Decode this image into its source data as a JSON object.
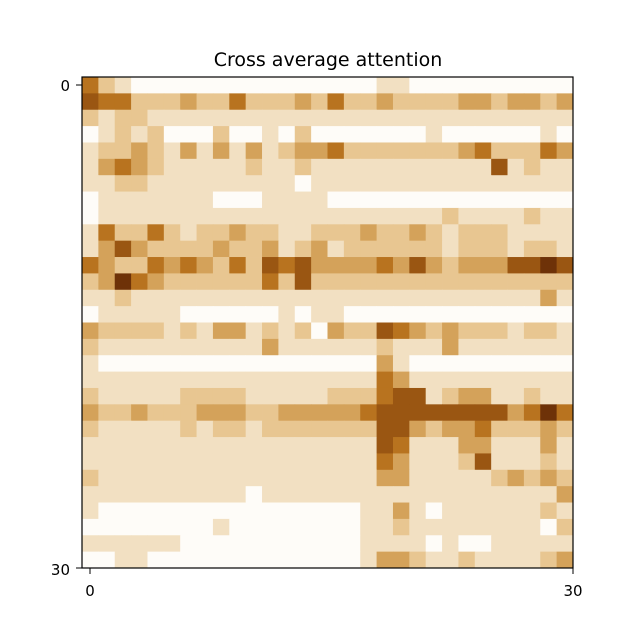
{
  "chart_data": {
    "type": "heatmap",
    "title": "Cross average attention",
    "x_ticks": [
      "0",
      "30"
    ],
    "y_ticks": [
      "0",
      "30"
    ],
    "xlim": [
      0,
      30
    ],
    "ylim": [
      0,
      30
    ],
    "colormap": [
      "#fefcf8",
      "#f2e0c2",
      "#e8c691",
      "#d4a25a",
      "#b8731f",
      "#9a5612",
      "#6e3208"
    ],
    "rows": 30,
    "cols": 30,
    "values": [
      [
        4,
        2,
        1,
        0,
        0,
        0,
        0,
        0,
        0,
        0,
        0,
        0,
        0,
        0,
        0,
        0,
        0,
        0,
        1,
        1,
        0,
        0,
        0,
        0,
        0,
        0,
        0,
        0,
        0,
        0
      ],
      [
        5,
        4,
        4,
        2,
        2,
        2,
        3,
        2,
        2,
        4,
        2,
        2,
        2,
        3,
        2,
        4,
        2,
        2,
        3,
        2,
        2,
        2,
        2,
        3,
        3,
        2,
        3,
        3,
        2,
        3
      ],
      [
        2,
        1,
        2,
        2,
        1,
        1,
        1,
        1,
        1,
        1,
        1,
        1,
        1,
        1,
        1,
        1,
        1,
        1,
        1,
        1,
        1,
        1,
        1,
        1,
        1,
        1,
        1,
        1,
        1,
        1
      ],
      [
        0,
        1,
        2,
        1,
        2,
        0,
        0,
        0,
        2,
        0,
        0,
        1,
        0,
        2,
        0,
        0,
        0,
        0,
        0,
        0,
        0,
        1,
        0,
        0,
        0,
        0,
        0,
        0,
        1,
        0
      ],
      [
        1,
        2,
        2,
        3,
        2,
        1,
        3,
        1,
        3,
        1,
        3,
        1,
        2,
        3,
        3,
        4,
        2,
        2,
        2,
        2,
        2,
        2,
        2,
        3,
        4,
        2,
        2,
        2,
        4,
        3
      ],
      [
        1,
        3,
        4,
        3,
        2,
        1,
        1,
        1,
        1,
        1,
        2,
        1,
        1,
        2,
        1,
        1,
        1,
        1,
        1,
        1,
        1,
        1,
        1,
        1,
        1,
        5,
        1,
        2,
        1,
        1
      ],
      [
        1,
        1,
        2,
        2,
        1,
        1,
        1,
        1,
        1,
        1,
        1,
        1,
        1,
        0,
        1,
        1,
        1,
        1,
        1,
        1,
        1,
        1,
        1,
        1,
        1,
        1,
        1,
        1,
        1,
        1
      ],
      [
        0,
        1,
        1,
        1,
        1,
        1,
        1,
        1,
        0,
        0,
        0,
        1,
        1,
        1,
        1,
        0,
        0,
        0,
        0,
        0,
        0,
        0,
        0,
        0,
        0,
        0,
        0,
        0,
        0,
        0
      ],
      [
        0,
        1,
        1,
        1,
        1,
        1,
        1,
        1,
        1,
        1,
        1,
        1,
        1,
        1,
        1,
        1,
        1,
        1,
        1,
        1,
        1,
        1,
        2,
        1,
        1,
        1,
        1,
        2,
        1,
        1
      ],
      [
        1,
        4,
        2,
        2,
        4,
        2,
        1,
        2,
        2,
        3,
        2,
        2,
        1,
        1,
        2,
        2,
        2,
        3,
        2,
        2,
        3,
        2,
        1,
        2,
        2,
        2,
        1,
        1,
        1,
        1
      ],
      [
        1,
        3,
        5,
        3,
        2,
        2,
        2,
        2,
        3,
        2,
        2,
        3,
        1,
        2,
        3,
        1,
        2,
        2,
        2,
        2,
        2,
        2,
        1,
        2,
        2,
        2,
        1,
        2,
        2,
        1
      ],
      [
        4,
        3,
        2,
        2,
        4,
        3,
        4,
        3,
        2,
        4,
        2,
        5,
        4,
        5,
        3,
        3,
        3,
        3,
        4,
        3,
        5,
        3,
        2,
        3,
        3,
        3,
        5,
        5,
        6,
        5
      ],
      [
        2,
        3,
        6,
        4,
        3,
        2,
        2,
        2,
        2,
        2,
        2,
        4,
        2,
        5,
        2,
        2,
        2,
        2,
        2,
        2,
        2,
        2,
        2,
        2,
        2,
        2,
        2,
        2,
        2,
        2
      ],
      [
        1,
        1,
        2,
        1,
        1,
        1,
        1,
        1,
        1,
        1,
        1,
        1,
        1,
        1,
        1,
        1,
        1,
        1,
        1,
        1,
        1,
        1,
        1,
        1,
        1,
        1,
        1,
        1,
        3,
        1
      ],
      [
        0,
        1,
        1,
        1,
        1,
        1,
        0,
        0,
        0,
        0,
        0,
        0,
        1,
        0,
        1,
        1,
        0,
        0,
        0,
        0,
        0,
        0,
        0,
        0,
        0,
        0,
        0,
        0,
        0,
        0
      ],
      [
        3,
        2,
        2,
        2,
        2,
        1,
        2,
        1,
        3,
        3,
        1,
        2,
        1,
        2,
        0,
        3,
        2,
        2,
        5,
        4,
        3,
        2,
        3,
        2,
        2,
        2,
        1,
        2,
        2,
        1
      ],
      [
        2,
        1,
        1,
        1,
        1,
        1,
        1,
        1,
        1,
        1,
        1,
        3,
        1,
        1,
        1,
        1,
        1,
        1,
        2,
        1,
        1,
        1,
        3,
        1,
        1,
        1,
        1,
        1,
        1,
        1
      ],
      [
        1,
        0,
        0,
        0,
        0,
        0,
        0,
        0,
        0,
        0,
        0,
        0,
        0,
        0,
        0,
        0,
        0,
        0,
        3,
        1,
        0,
        0,
        0,
        0,
        0,
        0,
        0,
        0,
        0,
        0
      ],
      [
        1,
        1,
        1,
        1,
        1,
        1,
        1,
        1,
        1,
        1,
        1,
        1,
        1,
        1,
        1,
        1,
        1,
        1,
        4,
        3,
        1,
        1,
        1,
        1,
        1,
        1,
        1,
        1,
        1,
        1
      ],
      [
        2,
        1,
        1,
        1,
        1,
        1,
        2,
        2,
        2,
        2,
        1,
        1,
        1,
        1,
        1,
        2,
        2,
        2,
        4,
        5,
        5,
        1,
        2,
        3,
        3,
        1,
        1,
        2,
        1,
        1
      ],
      [
        3,
        2,
        2,
        3,
        2,
        2,
        2,
        3,
        3,
        3,
        2,
        2,
        3,
        3,
        3,
        3,
        3,
        4,
        5,
        5,
        5,
        5,
        5,
        5,
        5,
        5,
        3,
        4,
        6,
        4
      ],
      [
        2,
        1,
        1,
        1,
        1,
        1,
        2,
        1,
        2,
        2,
        1,
        2,
        2,
        2,
        2,
        2,
        2,
        2,
        5,
        5,
        3,
        2,
        3,
        3,
        4,
        2,
        2,
        2,
        3,
        2
      ],
      [
        1,
        1,
        1,
        1,
        1,
        1,
        1,
        1,
        1,
        1,
        1,
        1,
        1,
        1,
        1,
        1,
        1,
        1,
        5,
        4,
        1,
        1,
        1,
        3,
        3,
        1,
        1,
        1,
        3,
        1
      ],
      [
        1,
        1,
        1,
        1,
        1,
        1,
        1,
        1,
        1,
        1,
        1,
        1,
        1,
        1,
        1,
        1,
        1,
        1,
        4,
        3,
        1,
        1,
        1,
        2,
        5,
        1,
        1,
        1,
        2,
        1
      ],
      [
        2,
        1,
        1,
        1,
        1,
        1,
        1,
        1,
        1,
        1,
        1,
        1,
        1,
        1,
        1,
        1,
        1,
        1,
        3,
        3,
        1,
        1,
        1,
        1,
        1,
        2,
        3,
        2,
        3,
        2
      ],
      [
        1,
        1,
        1,
        1,
        1,
        1,
        1,
        1,
        1,
        1,
        0,
        1,
        1,
        1,
        1,
        1,
        1,
        1,
        1,
        1,
        1,
        1,
        1,
        1,
        1,
        1,
        1,
        1,
        1,
        3
      ],
      [
        1,
        0,
        0,
        0,
        0,
        0,
        0,
        0,
        0,
        0,
        0,
        0,
        0,
        0,
        0,
        0,
        0,
        1,
        1,
        3,
        1,
        0,
        1,
        1,
        1,
        1,
        1,
        1,
        2,
        1
      ],
      [
        0,
        0,
        0,
        0,
        0,
        0,
        0,
        0,
        1,
        0,
        0,
        0,
        0,
        0,
        0,
        0,
        0,
        1,
        1,
        2,
        1,
        1,
        1,
        1,
        1,
        1,
        1,
        1,
        0,
        2
      ],
      [
        1,
        1,
        1,
        1,
        1,
        1,
        0,
        0,
        0,
        0,
        0,
        0,
        0,
        0,
        0,
        0,
        0,
        1,
        1,
        1,
        1,
        0,
        1,
        0,
        0,
        1,
        1,
        1,
        1,
        1
      ],
      [
        0,
        0,
        1,
        1,
        0,
        0,
        0,
        0,
        0,
        0,
        0,
        0,
        0,
        0,
        0,
        0,
        0,
        1,
        3,
        3,
        2,
        1,
        1,
        2,
        1,
        1,
        1,
        1,
        2,
        3
      ]
    ]
  }
}
